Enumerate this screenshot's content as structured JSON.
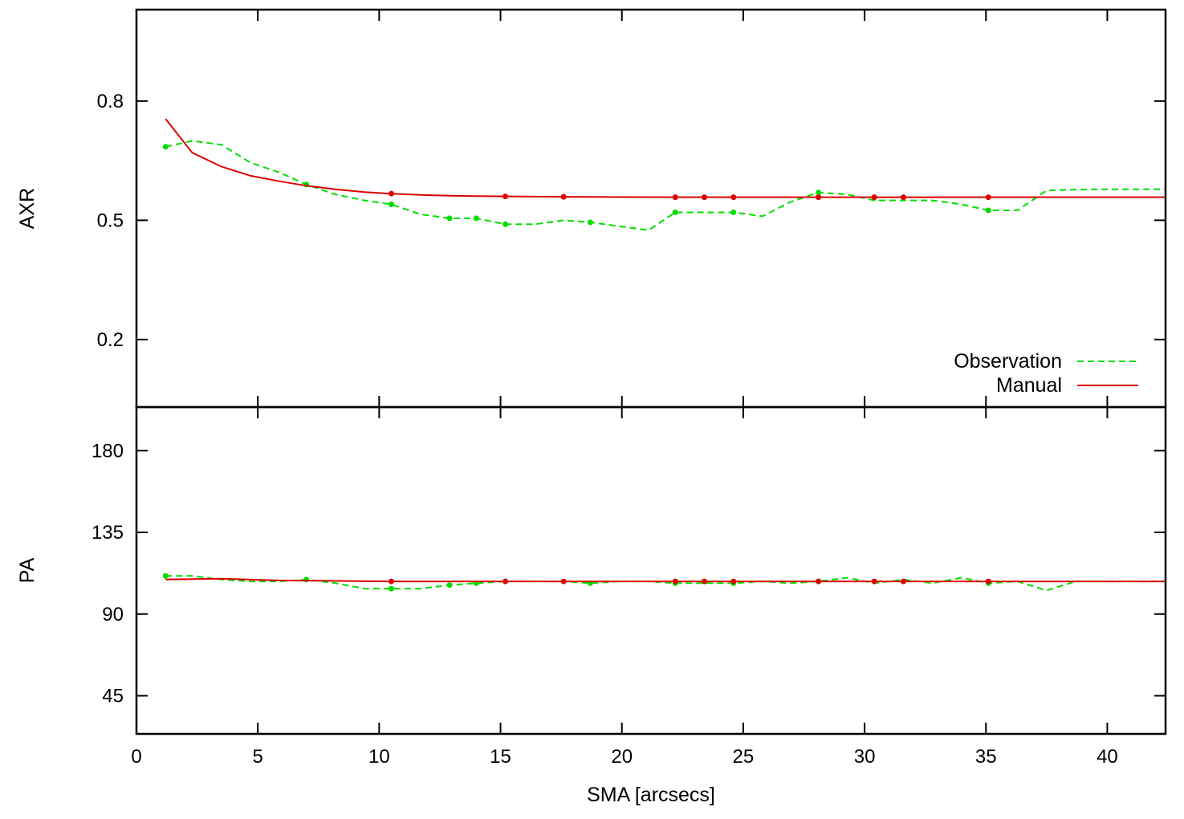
{
  "chart_data": [
    {
      "type": "line",
      "ylabel": "AXR",
      "xlim": [
        0,
        42.4
      ],
      "ylim": [
        0.03,
        1.03
      ],
      "yticks": [
        0.2,
        0.5,
        0.8
      ],
      "ytick_labels": [
        "0.2",
        "0.5",
        "0.8"
      ],
      "grid": false,
      "legend_position": "bottom-right",
      "series": [
        {
          "name": "Observation",
          "color": "#00dd00",
          "style": "dashed",
          "x": [
            1.2,
            2.3,
            3.5,
            4.7,
            5.9,
            7.0,
            8.2,
            9.4,
            10.5,
            11.7,
            12.9,
            14.0,
            15.2,
            16.4,
            17.6,
            18.7,
            19.9,
            21.1,
            22.2,
            23.4,
            24.6,
            25.8,
            26.9,
            28.1,
            29.3,
            30.4,
            31.6,
            32.8,
            34.0,
            35.1,
            36.3,
            37.5,
            38.7,
            39.8,
            41.0,
            42.4
          ],
          "y": [
            0.685,
            0.7,
            0.69,
            0.645,
            0.62,
            0.59,
            0.565,
            0.55,
            0.54,
            0.515,
            0.505,
            0.505,
            0.49,
            0.49,
            0.5,
            0.495,
            0.485,
            0.475,
            0.52,
            0.52,
            0.52,
            0.51,
            0.545,
            0.57,
            0.565,
            0.55,
            0.55,
            0.55,
            0.54,
            0.525,
            0.525,
            0.575,
            0.577,
            0.578,
            0.578,
            0.578
          ],
          "markers_at": [
            1.2,
            7.0,
            10.5,
            12.9,
            14.0,
            15.2,
            18.7,
            22.2,
            24.6,
            28.1,
            35.1
          ]
        },
        {
          "name": "Manual",
          "color": "#dd0000",
          "style": "solid",
          "x": [
            1.2,
            2.3,
            3.5,
            4.7,
            5.9,
            7.0,
            8.2,
            9.4,
            10.5,
            11.7,
            12.9,
            14.0,
            15.2,
            17.6,
            22.2,
            23.4,
            24.6,
            28.1,
            30.4,
            31.6,
            35.1,
            42.4
          ],
          "y": [
            0.755,
            0.67,
            0.635,
            0.612,
            0.598,
            0.587,
            0.578,
            0.571,
            0.567,
            0.564,
            0.562,
            0.561,
            0.56,
            0.559,
            0.558,
            0.558,
            0.558,
            0.558,
            0.558,
            0.558,
            0.558,
            0.558
          ],
          "markers_at": [
            10.5,
            15.2,
            17.6,
            22.2,
            23.4,
            24.6,
            28.1,
            30.4,
            31.6,
            35.1
          ]
        }
      ]
    },
    {
      "type": "line",
      "ylabel": "PA",
      "xlabel": "SMA [arcsecs]",
      "xlim": [
        0,
        42.4
      ],
      "ylim": [
        24,
        204
      ],
      "xticks": [
        0,
        5,
        10,
        15,
        20,
        25,
        30,
        35,
        40
      ],
      "xtick_labels": [
        "0",
        "5",
        "10",
        "15",
        "20",
        "25",
        "30",
        "35",
        "40"
      ],
      "yticks": [
        45,
        90,
        135,
        180
      ],
      "ytick_labels": [
        "45",
        "90",
        "135",
        "180"
      ],
      "grid": false,
      "series": [
        {
          "name": "Observation",
          "color": "#00dd00",
          "style": "dashed",
          "x": [
            1.2,
            2.3,
            3.5,
            4.7,
            5.9,
            7.0,
            8.2,
            9.4,
            10.5,
            11.7,
            12.9,
            14.0,
            15.2,
            16.4,
            17.6,
            18.7,
            19.9,
            21.1,
            22.2,
            23.4,
            24.6,
            25.8,
            26.9,
            28.1,
            29.3,
            30.4,
            31.6,
            32.8,
            34.0,
            35.1,
            36.3,
            37.5,
            38.7,
            39.8,
            41.0,
            42.4
          ],
          "y": [
            111,
            111,
            109,
            108,
            108,
            109,
            107,
            104,
            104,
            104,
            106,
            107,
            108,
            108,
            108,
            107,
            108,
            108,
            107,
            107,
            107,
            108,
            107,
            108,
            110,
            107,
            109,
            107,
            110,
            107,
            108,
            103,
            108,
            108,
            108,
            108
          ],
          "markers_at": [
            1.2,
            7.0,
            10.5,
            12.9,
            14.0,
            15.2,
            18.7,
            22.2,
            24.6,
            28.1,
            35.1
          ]
        },
        {
          "name": "Manual",
          "color": "#dd0000",
          "style": "solid",
          "x": [
            1.2,
            3.5,
            5.9,
            10.5,
            15.2,
            17.6,
            22.2,
            23.4,
            24.6,
            28.1,
            30.4,
            31.6,
            35.1,
            42.4
          ],
          "y": [
            109,
            109.5,
            108.5,
            108,
            108,
            108,
            108,
            108,
            108,
            108,
            108,
            108,
            108,
            108
          ],
          "markers_at": [
            10.5,
            15.2,
            17.6,
            22.2,
            23.4,
            24.6,
            28.1,
            30.4,
            31.6,
            35.1
          ]
        }
      ]
    }
  ]
}
